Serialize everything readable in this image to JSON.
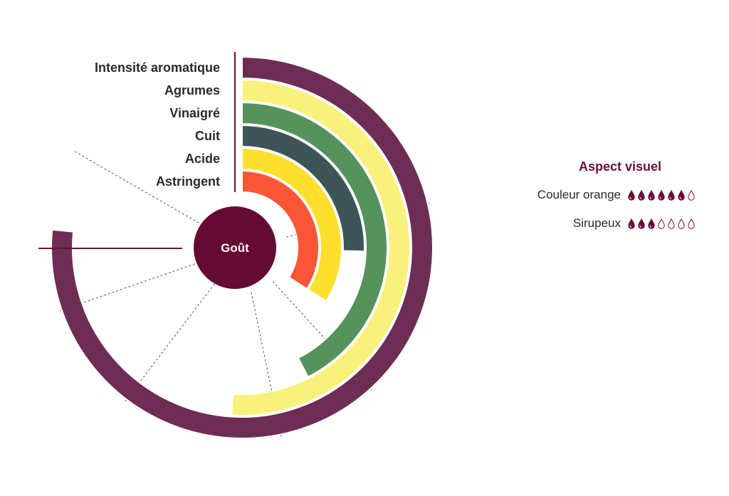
{
  "chart_data": {
    "type": "radial-bar",
    "center_label": "Goût",
    "max_value": 10,
    "categories": [
      "Intensité aromatique",
      "Agrumes",
      "Vinaigré",
      "Cuit",
      "Acide",
      "Astringent"
    ],
    "values": [
      9,
      6,
      5,
      3,
      4,
      4
    ],
    "colors": [
      "#6e2d55",
      "#f8f27c",
      "#56925c",
      "#3e5558",
      "#fde02e",
      "#fa5636"
    ]
  },
  "aspect_visuel": {
    "title": "Aspect visuel",
    "max_drops": 7,
    "drop_color": "#6b0f3a",
    "rows": [
      {
        "label": "Couleur orange",
        "value": 6
      },
      {
        "label": "Sirupeux",
        "value": 3
      }
    ]
  }
}
